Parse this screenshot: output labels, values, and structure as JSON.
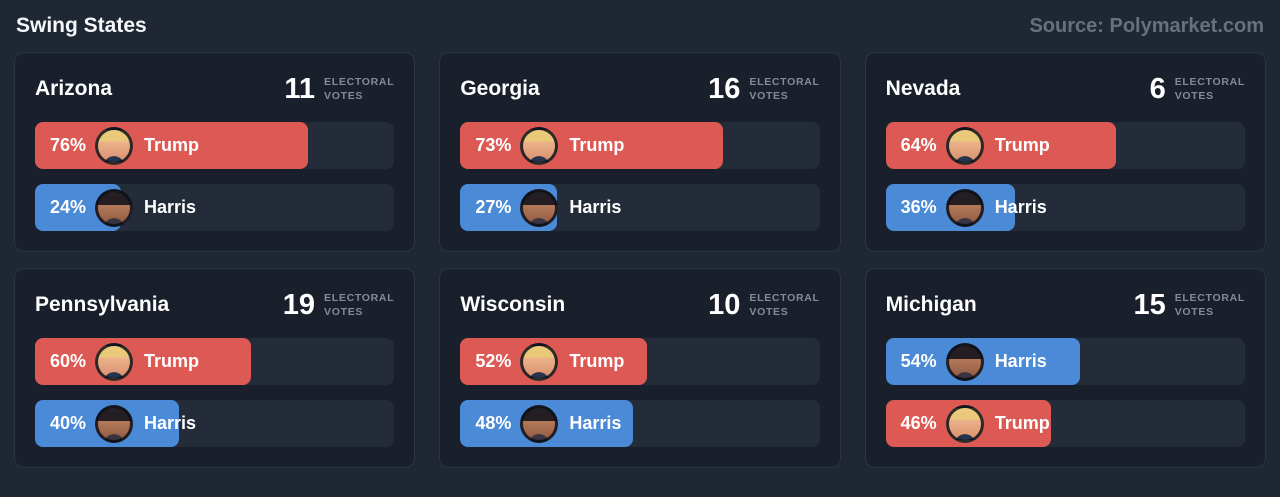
{
  "page": {
    "title": "Swing States",
    "source": "Source: Polymarket.com"
  },
  "labels": {
    "electoral_votes_line1": "ELECTORAL",
    "electoral_votes_line2": "VOTES"
  },
  "colors": {
    "trump": "#dd5953",
    "harris": "#4a8ad6",
    "page_bg": "#1f2733",
    "card_bg": "#19202b",
    "track_bg": "#242c39"
  },
  "chart_data": {
    "type": "bar",
    "title": "Swing States",
    "source": "Polymarket.com",
    "unit": "percent chance to win",
    "xlim": [
      0,
      100
    ],
    "states": [
      {
        "state": "Arizona",
        "electoral_votes": "11",
        "rows": [
          {
            "name": "Trump",
            "pct": 76,
            "label": "76%"
          },
          {
            "name": "Harris",
            "pct": 24,
            "label": "24%"
          }
        ]
      },
      {
        "state": "Georgia",
        "electoral_votes": "16",
        "rows": [
          {
            "name": "Trump",
            "pct": 73,
            "label": "73%"
          },
          {
            "name": "Harris",
            "pct": 27,
            "label": "27%"
          }
        ]
      },
      {
        "state": "Nevada",
        "electoral_votes": "6",
        "rows": [
          {
            "name": "Trump",
            "pct": 64,
            "label": "64%"
          },
          {
            "name": "Harris",
            "pct": 36,
            "label": "36%"
          }
        ]
      },
      {
        "state": "Pennsylvania",
        "electoral_votes": "19",
        "rows": [
          {
            "name": "Trump",
            "pct": 60,
            "label": "60%"
          },
          {
            "name": "Harris",
            "pct": 40,
            "label": "40%"
          }
        ]
      },
      {
        "state": "Wisconsin",
        "electoral_votes": "10",
        "rows": [
          {
            "name": "Trump",
            "pct": 52,
            "label": "52%"
          },
          {
            "name": "Harris",
            "pct": 48,
            "label": "48%"
          }
        ]
      },
      {
        "state": "Michigan",
        "electoral_votes": "15",
        "rows": [
          {
            "name": "Harris",
            "pct": 54,
            "label": "54%"
          },
          {
            "name": "Trump",
            "pct": 46,
            "label": "46%"
          }
        ]
      }
    ]
  }
}
